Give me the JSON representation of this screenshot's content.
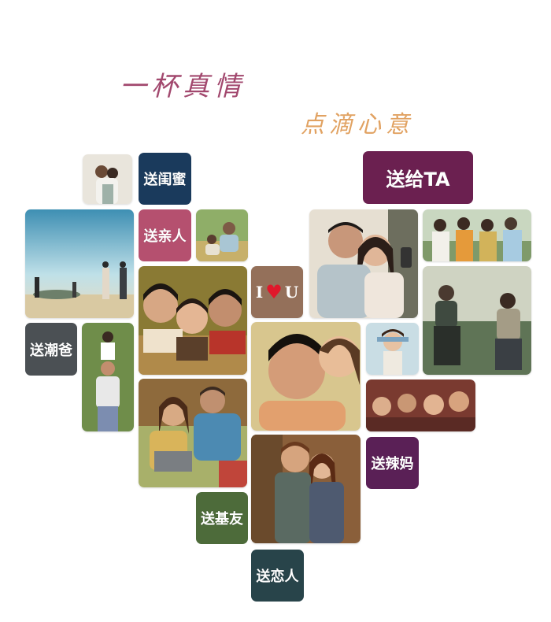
{
  "headline": {
    "line1": "一杯真情",
    "line2": "点滴心意"
  },
  "buttons": {
    "gui_mi": "送闺蜜",
    "qin_ren": "送亲人",
    "chao_ba": "送潮爸",
    "ji_you": "送基友",
    "lian_ren": "送恋人",
    "la_ma": "送辣妈",
    "gei_ta": "送给TA"
  },
  "iu_badge": {
    "left": "I",
    "right": "U",
    "heart": "♥"
  },
  "colors": {
    "gui_mi": "#1a3a5c",
    "qin_ren": "#b5506f",
    "chao_ba": "#4b5054",
    "ji_you": "#4d6b3a",
    "lian_ren": "#28444a",
    "la_ma": "#5a2056",
    "gei_ta": "#6b2050",
    "iu": "#94705a",
    "headline_1": "#a2486e",
    "headline_2": "#e1a262"
  }
}
